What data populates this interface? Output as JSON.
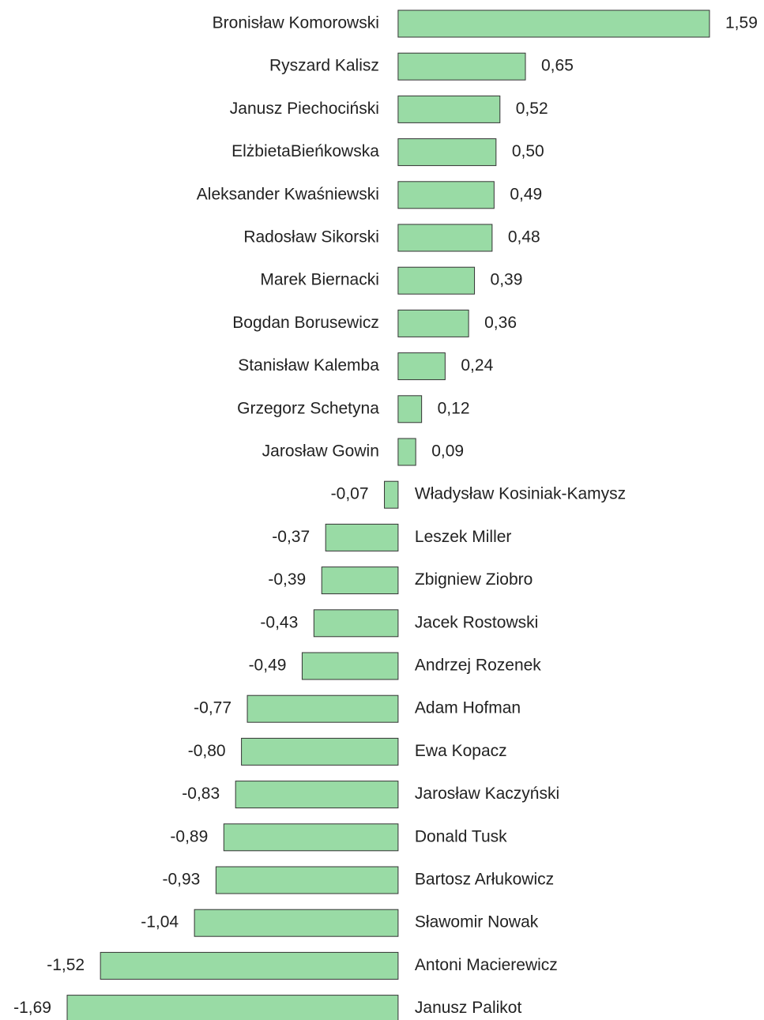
{
  "chart_data": {
    "type": "hbar",
    "categories": [
      "Bronisław Komorowski",
      "Ryszard Kalisz",
      "Janusz Piechociński",
      "ElżbietaBieńkowska",
      "Aleksander Kwaśniewski",
      "Radosław Sikorski",
      "Marek Biernacki",
      "Bogdan Borusewicz",
      "Stanisław Kalemba",
      "Grzegorz Schetyna",
      "Jarosław Gowin",
      "Władysław Kosiniak-Kamysz",
      "Leszek Miller",
      "Zbigniew Ziobro",
      "Jacek Rostowski",
      "Andrzej Rozenek",
      "Adam Hofman",
      "Ewa Kopacz",
      "Jarosław Kaczyński",
      "Donald Tusk",
      "Bartosz Arłukowicz",
      "Sławomir Nowak",
      "Antoni Macierewicz",
      "Janusz Palikot"
    ],
    "values": [
      1.59,
      0.65,
      0.52,
      0.5,
      0.49,
      0.48,
      0.39,
      0.36,
      0.24,
      0.12,
      0.09,
      -0.07,
      -0.37,
      -0.39,
      -0.43,
      -0.49,
      -0.77,
      -0.8,
      -0.83,
      -0.89,
      -0.93,
      -1.04,
      -1.52,
      -1.69
    ],
    "value_labels": [
      "1,59",
      "0,65",
      "0,52",
      "0,50",
      "0,49",
      "0,48",
      "0,39",
      "0,36",
      "0,24",
      "0,12",
      "0,09",
      "-0,07",
      "-0,37",
      "-0,39",
      "-0,43",
      "-0,49",
      "-0,77",
      "-0,80",
      "-0,83",
      "-0,89",
      "-0,93",
      "-1,04",
      "-1,52",
      "-1,69"
    ],
    "color": "#99dba5",
    "xlim": [
      -1.69,
      1.59
    ]
  }
}
